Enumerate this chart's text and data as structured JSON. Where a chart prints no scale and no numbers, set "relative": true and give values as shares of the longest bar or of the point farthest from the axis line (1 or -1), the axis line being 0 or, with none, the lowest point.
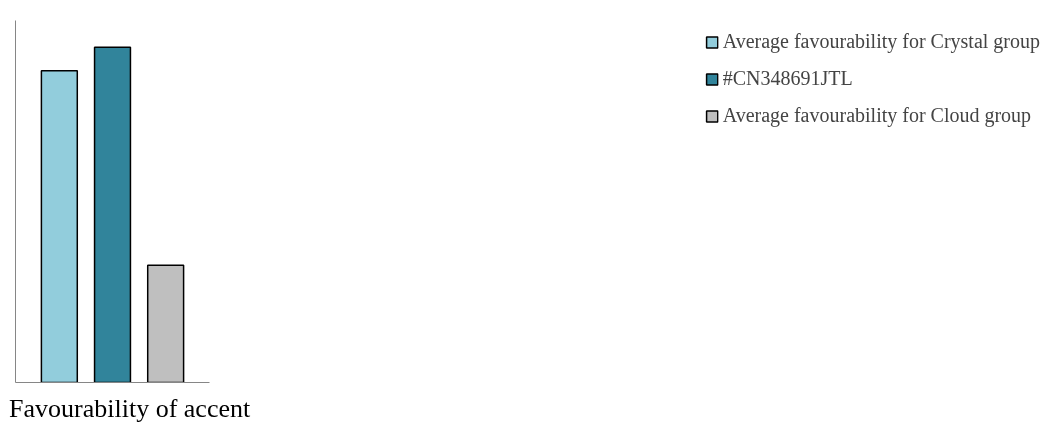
{
  "chart_data": {
    "type": "bar",
    "relative": true,
    "categories": [
      "Favourability of accent"
    ],
    "series": [
      {
        "name": "Average favourability for Crystal group",
        "color": "#92cddc",
        "values": [
          0.93
        ]
      },
      {
        "name": "#CN348691JTL",
        "color": "#31849b",
        "values": [
          1
        ]
      },
      {
        "name": "Average favourability for Cloud group",
        "color": "#bfbfbf",
        "values": [
          0.35
        ]
      }
    ],
    "legend": "right",
    "grid": false
  }
}
